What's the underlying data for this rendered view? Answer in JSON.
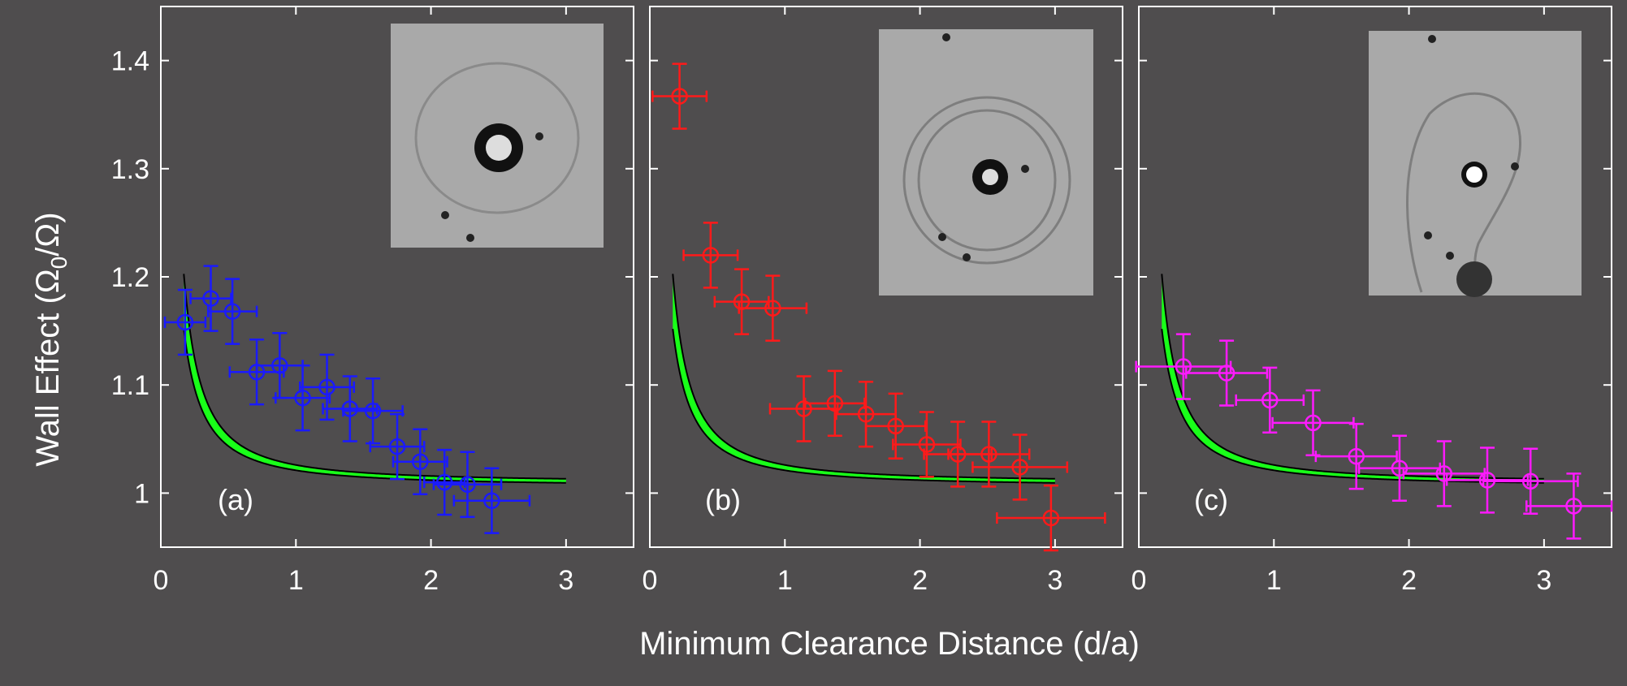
{
  "figure": {
    "xlabel": "Minimum Clearance Distance (d/a)",
    "ylabel_main": "Wall Effect (Ω",
    "ylabel_sub": "0",
    "ylabel_end": "/Ω)"
  },
  "colors": {
    "background": "#4f4d4e",
    "axes": "#ffffff",
    "band_fill": "#19ff19",
    "band_edge": "#000000",
    "inset_bg": "#a9a9a9"
  },
  "chart_data": [
    {
      "type": "scatter",
      "panel_label": "(a)",
      "marker_color": "#1a1aff",
      "xlim": [
        0,
        3.5
      ],
      "ylim": [
        0.95,
        1.45
      ],
      "xticks": [
        0,
        1,
        2,
        3
      ],
      "yticks": [
        1,
        1.1,
        1.2,
        1.3,
        1.4
      ],
      "x": [
        0.18,
        0.37,
        0.53,
        0.71,
        0.88,
        1.05,
        1.23,
        1.4,
        1.57,
        1.75,
        1.92,
        2.1,
        2.27,
        2.45
      ],
      "y": [
        1.158,
        1.18,
        1.168,
        1.112,
        1.118,
        1.088,
        1.098,
        1.078,
        1.076,
        1.043,
        1.029,
        1.01,
        1.008,
        0.993
      ],
      "xerr": [
        0.15,
        0.15,
        0.18,
        0.2,
        0.17,
        0.2,
        0.2,
        0.2,
        0.22,
        0.2,
        0.2,
        0.15,
        0.25,
        0.28
      ],
      "yerr": [
        0.03,
        0.03,
        0.03,
        0.03,
        0.03,
        0.03,
        0.03,
        0.03,
        0.03,
        0.03,
        0.03,
        0.03,
        0.03,
        0.03
      ],
      "band_end_x": 3.0
    },
    {
      "type": "scatter",
      "panel_label": "(b)",
      "marker_color": "#ff1a1a",
      "xlim": [
        0,
        3.5
      ],
      "ylim": [
        0.95,
        1.45
      ],
      "xticks": [
        0,
        1,
        2,
        3
      ],
      "yticks": [
        1,
        1.1,
        1.2,
        1.3,
        1.4
      ],
      "x": [
        0.22,
        0.45,
        0.68,
        0.91,
        1.14,
        1.37,
        1.6,
        1.82,
        2.05,
        2.28,
        2.51,
        2.74,
        2.97
      ],
      "y": [
        1.367,
        1.22,
        1.177,
        1.171,
        1.078,
        1.083,
        1.073,
        1.062,
        1.045,
        1.036,
        1.036,
        1.024,
        0.977
      ],
      "xerr": [
        0.2,
        0.2,
        0.2,
        0.25,
        0.25,
        0.22,
        0.22,
        0.22,
        0.25,
        0.25,
        0.3,
        0.35,
        0.4
      ],
      "yerr": [
        0.03,
        0.03,
        0.03,
        0.03,
        0.03,
        0.03,
        0.03,
        0.03,
        0.03,
        0.03,
        0.03,
        0.03,
        0.03
      ],
      "band_end_x": 3.0
    },
    {
      "type": "scatter",
      "panel_label": "(c)",
      "marker_color": "#ff1aff",
      "xlim": [
        0,
        3.5
      ],
      "ylim": [
        0.95,
        1.45
      ],
      "xticks": [
        0,
        1,
        2,
        3
      ],
      "yticks": [
        1,
        1.1,
        1.2,
        1.3,
        1.4
      ],
      "x": [
        0.33,
        0.65,
        0.97,
        1.29,
        1.61,
        1.93,
        2.26,
        2.58,
        2.9,
        3.22
      ],
      "y": [
        1.117,
        1.111,
        1.086,
        1.065,
        1.034,
        1.023,
        1.018,
        1.012,
        1.011,
        0.988
      ],
      "xerr": [
        0.35,
        0.3,
        0.25,
        0.3,
        0.3,
        0.3,
        0.3,
        0.3,
        0.35,
        0.35
      ],
      "yerr": [
        0.03,
        0.03,
        0.03,
        0.03,
        0.03,
        0.03,
        0.03,
        0.03,
        0.03,
        0.03
      ],
      "band_end_x": 3.0
    }
  ]
}
